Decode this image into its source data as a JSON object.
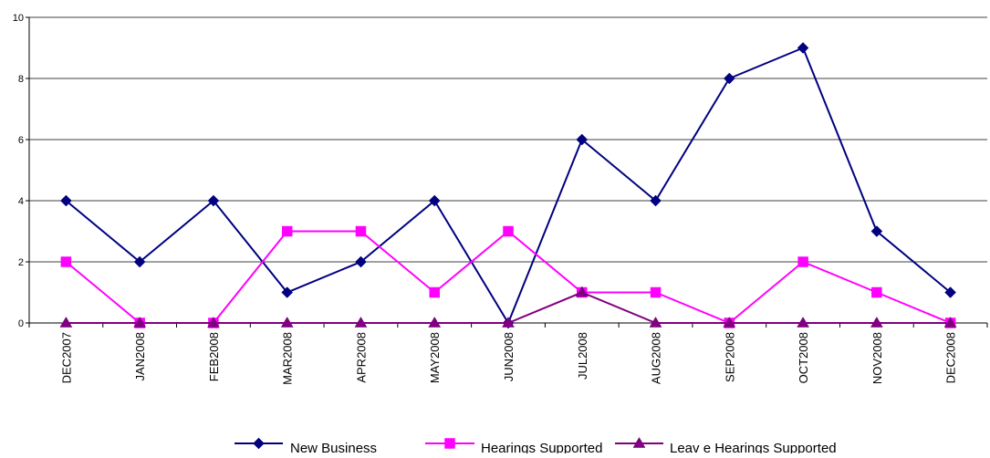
{
  "chart_data": {
    "type": "line",
    "title": "",
    "xlabel": "",
    "ylabel": "",
    "ylim": [
      0,
      10
    ],
    "yticks": [
      0,
      2,
      4,
      6,
      8,
      10
    ],
    "grid": true,
    "legend_position": "bottom",
    "categories": [
      "DEC2007",
      "JAN2008",
      "FEB2008",
      "MAR2008",
      "APR2008",
      "MAY2008",
      "JUN2008",
      "JUL2008",
      "AUG2008",
      "SEP2008",
      "OCT2008",
      "NOV2008",
      "DEC2008"
    ],
    "series": [
      {
        "name": "New Business",
        "color": "#000080",
        "marker": "diamond",
        "values": [
          4,
          2,
          4,
          1,
          2,
          4,
          0,
          6,
          4,
          8,
          9,
          3,
          1
        ]
      },
      {
        "name": "Hearings Supported",
        "color": "#FF00FF",
        "marker": "square",
        "values": [
          2,
          0,
          0,
          3,
          3,
          1,
          3,
          1,
          1,
          0,
          2,
          1,
          0
        ]
      },
      {
        "name": "Leav e Hearings Supported",
        "color": "#800080",
        "marker": "triangle",
        "values": [
          0,
          0,
          0,
          0,
          0,
          0,
          0,
          1,
          0,
          0,
          0,
          0,
          0
        ]
      }
    ]
  }
}
